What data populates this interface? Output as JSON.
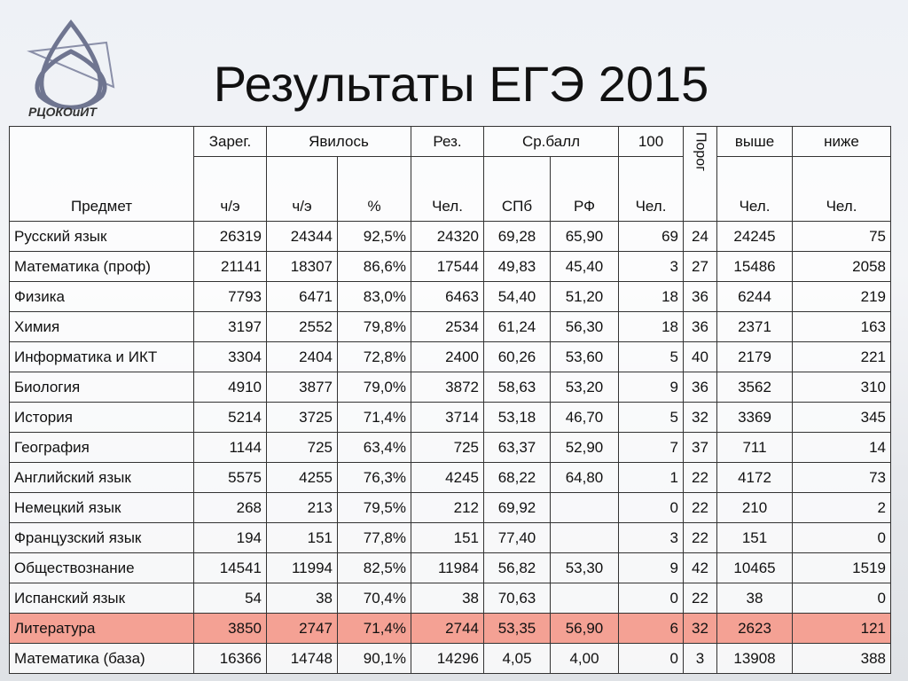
{
  "logo": {
    "text": "РЦОКОиИТ"
  },
  "header": {
    "title": "Результаты ЕГЭ 2015"
  },
  "table": {
    "header_top": [
      "Предмет",
      "Зарег.",
      "Явилось",
      "Рез.",
      "Ср.балл",
      "100",
      "Порог",
      "выше",
      "ниже"
    ],
    "header_sub": [
      "ч/э",
      "ч/э",
      "%",
      "Чел.",
      "СПб",
      "РФ",
      "Чел.",
      "Чел.",
      "Чел."
    ],
    "highlight_row": 13,
    "rows": [
      [
        "Русский язык",
        "26319",
        "24344",
        "92,5%",
        "24320",
        "69,28",
        "65,90",
        "69",
        "24",
        "24245",
        "75"
      ],
      [
        "Математика (проф)",
        "21141",
        "18307",
        "86,6%",
        "17544",
        "49,83",
        "45,40",
        "3",
        "27",
        "15486",
        "2058"
      ],
      [
        "Физика",
        "7793",
        "6471",
        "83,0%",
        "6463",
        "54,40",
        "51,20",
        "18",
        "36",
        "6244",
        "219"
      ],
      [
        "Химия",
        "3197",
        "2552",
        "79,8%",
        "2534",
        "61,24",
        "56,30",
        "18",
        "36",
        "2371",
        "163"
      ],
      [
        "Информатика и ИКТ",
        "3304",
        "2404",
        "72,8%",
        "2400",
        "60,26",
        "53,60",
        "5",
        "40",
        "2179",
        "221"
      ],
      [
        "Биология",
        "4910",
        "3877",
        "79,0%",
        "3872",
        "58,63",
        "53,20",
        "9",
        "36",
        "3562",
        "310"
      ],
      [
        "История",
        "5214",
        "3725",
        "71,4%",
        "3714",
        "53,18",
        "46,70",
        "5",
        "32",
        "3369",
        "345"
      ],
      [
        "География",
        "1144",
        "725",
        "63,4%",
        "725",
        "63,37",
        "52,90",
        "7",
        "37",
        "711",
        "14"
      ],
      [
        "Английский язык",
        "5575",
        "4255",
        "76,3%",
        "4245",
        "68,22",
        "64,80",
        "1",
        "22",
        "4172",
        "73"
      ],
      [
        "Немецкий язык",
        "268",
        "213",
        "79,5%",
        "212",
        "69,92",
        null,
        "0",
        "22",
        "210",
        "2"
      ],
      [
        "Французский язык",
        "194",
        "151",
        "77,8%",
        "151",
        "77,40",
        null,
        "3",
        "22",
        "151",
        "0"
      ],
      [
        "Обществознание",
        "14541",
        "11994",
        "82,5%",
        "11984",
        "56,82",
        "53,30",
        "9",
        "42",
        "10465",
        "1519"
      ],
      [
        "Испанский язык",
        "54",
        "38",
        "70,4%",
        "38",
        "70,63",
        null,
        "0",
        "22",
        "38",
        "0"
      ],
      [
        "Литература",
        "3850",
        "2747",
        "71,4%",
        "2744",
        "53,35",
        "56,90",
        "6",
        "32",
        "2623",
        "121"
      ],
      [
        "Математика (база)",
        "16366",
        "14748",
        "90,1%",
        "14296",
        "4,05",
        "4,00",
        "0",
        "3",
        "13908",
        "388"
      ]
    ]
  }
}
